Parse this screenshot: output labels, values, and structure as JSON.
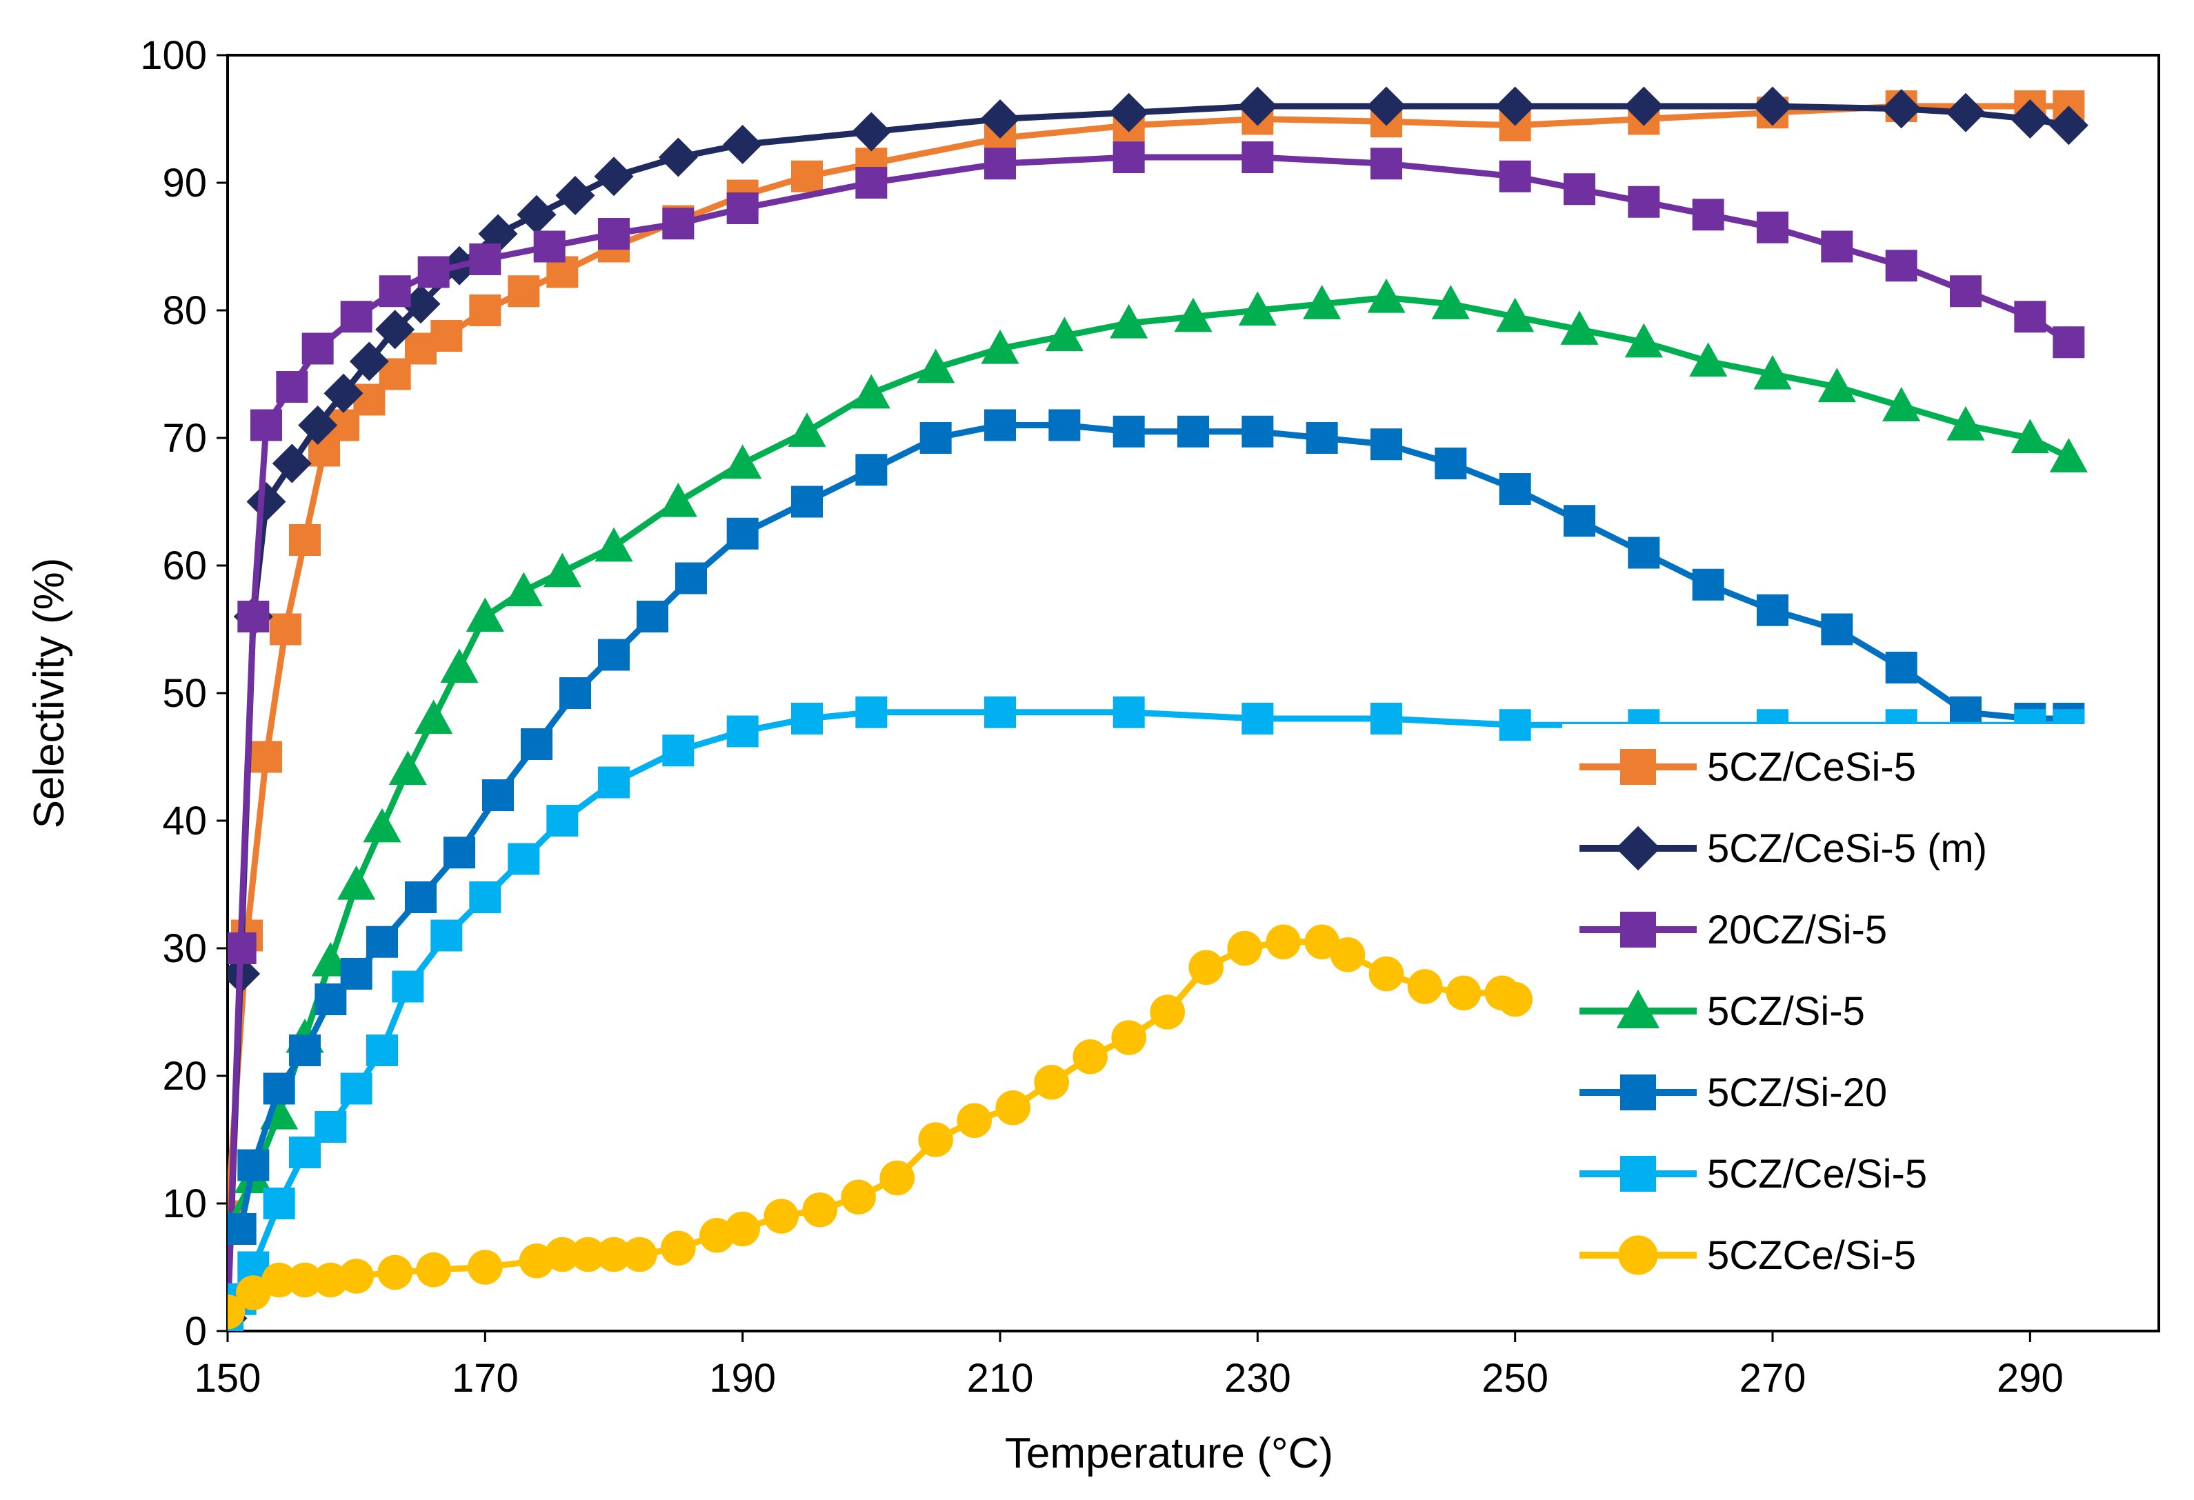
{
  "chart_data": {
    "type": "line",
    "title": "",
    "xlabel": "Temperature (°C)",
    "ylabel": "Selectivity (%)",
    "xlim": [
      150,
      300
    ],
    "ylim": [
      0,
      100
    ],
    "xticks": [
      150,
      170,
      190,
      210,
      230,
      250,
      270,
      290
    ],
    "yticks": [
      0,
      10,
      20,
      30,
      40,
      50,
      60,
      70,
      80,
      90,
      100
    ],
    "grid": false,
    "legend_position": "right",
    "series": [
      {
        "name": "5CZ/CeSi-5",
        "color": "#ED7D31",
        "marker": "square",
        "x": [
          150,
          151.5,
          153,
          154.5,
          156,
          157.5,
          159,
          161,
          163,
          165,
          167,
          170,
          173,
          176,
          180,
          185,
          190,
          195,
          200,
          210,
          220,
          230,
          240,
          250,
          260,
          270,
          280,
          290,
          293
        ],
        "y": [
          9,
          31,
          45,
          55,
          62,
          69,
          71,
          73,
          75,
          77,
          78,
          80,
          81.5,
          83,
          85,
          87,
          89,
          90.5,
          91.5,
          93.5,
          94.5,
          95,
          94.8,
          94.5,
          95,
          95.5,
          96,
          96,
          96
        ]
      },
      {
        "name": "5CZ/CeSi-5 (m)",
        "color": "#1F2A5F",
        "marker": "diamond",
        "x": [
          150,
          151,
          152,
          153,
          155,
          157,
          159,
          161,
          163,
          165,
          168,
          171,
          174,
          177,
          180,
          185,
          190,
          200,
          210,
          220,
          230,
          240,
          250,
          260,
          270,
          280,
          285,
          290,
          293
        ],
        "y": [
          1,
          28,
          56,
          65,
          68,
          71,
          73.5,
          76,
          78.5,
          80.5,
          83.5,
          86,
          87.5,
          89,
          90.5,
          92,
          93,
          94,
          95,
          95.5,
          96,
          96,
          96,
          96,
          96,
          95.8,
          95.5,
          95,
          94.5
        ]
      },
      {
        "name": "20CZ/Si-5",
        "color": "#7030A0",
        "marker": "square",
        "x": [
          150,
          151,
          152,
          153,
          155,
          157,
          160,
          163,
          166,
          170,
          175,
          180,
          185,
          190,
          200,
          210,
          220,
          230,
          240,
          250,
          255,
          260,
          265,
          270,
          275,
          280,
          285,
          290,
          293
        ],
        "y": [
          1,
          30,
          56,
          71,
          74,
          77,
          79.5,
          81.5,
          83,
          84,
          85,
          86,
          86.8,
          88,
          90,
          91.5,
          92,
          92,
          91.5,
          90.5,
          89.5,
          88.5,
          87.5,
          86.5,
          85,
          83.5,
          81.5,
          79.5,
          77.5
        ]
      },
      {
        "name": "5CZ/Si-5",
        "color": "#00B050",
        "marker": "triangle",
        "x": [
          150,
          152,
          154,
          156,
          158,
          160,
          162,
          164,
          166,
          168,
          170,
          173,
          176,
          180,
          185,
          190,
          195,
          200,
          205,
          210,
          215,
          220,
          225,
          230,
          235,
          240,
          245,
          250,
          255,
          260,
          265,
          270,
          275,
          280,
          285,
          290,
          293
        ],
        "y": [
          8,
          12,
          17,
          23,
          29,
          35,
          39.5,
          44,
          48,
          52,
          56,
          58,
          59.5,
          61.5,
          65,
          68,
          70.5,
          73.5,
          75.5,
          77,
          78,
          79,
          79.5,
          80,
          80.5,
          81,
          80.5,
          79.5,
          78.5,
          77.5,
          76,
          75,
          74,
          72.5,
          71,
          70,
          68.5
        ]
      },
      {
        "name": "5CZ/Si-20",
        "color": "#0070C0",
        "marker": "square",
        "x": [
          150,
          151,
          152,
          154,
          156,
          158,
          160,
          162,
          165,
          168,
          171,
          174,
          177,
          180,
          183,
          186,
          190,
          195,
          200,
          205,
          210,
          215,
          220,
          225,
          230,
          235,
          240,
          245,
          250,
          255,
          260,
          265,
          270,
          275,
          280,
          285,
          290,
          293
        ],
        "y": [
          8,
          8,
          13,
          19,
          22,
          26,
          28,
          30.5,
          34,
          37.5,
          42,
          46,
          50,
          53,
          56,
          59,
          62.5,
          65,
          67.5,
          70,
          71,
          71,
          70.5,
          70.5,
          70.5,
          70,
          69.5,
          68,
          66,
          63.5,
          61,
          58.5,
          56.5,
          55,
          52,
          48.5,
          48,
          48
        ]
      },
      {
        "name": "5CZ/Ce/Si-5",
        "color": "#00B0F0",
        "marker": "square",
        "x": [
          150,
          151,
          152,
          154,
          156,
          158,
          160,
          162,
          164,
          167,
          170,
          173,
          176,
          180,
          185,
          190,
          195,
          200,
          210,
          220,
          230,
          240,
          250,
          260,
          270,
          280,
          290,
          293
        ],
        "y": [
          0,
          2.5,
          5,
          10,
          14,
          16,
          19,
          22,
          27,
          31,
          34,
          37,
          40,
          43,
          45.5,
          47,
          48,
          48.5,
          48.5,
          48.5,
          48,
          48,
          47.5,
          47.5,
          47.5,
          47.5,
          47.5,
          47.5
        ]
      },
      {
        "name": "5CZCe/Si-5",
        "color": "#FFC000",
        "marker": "circle",
        "x": [
          150,
          152,
          154,
          156,
          158,
          160,
          163,
          166,
          170,
          174,
          176,
          178,
          180,
          182,
          185,
          188,
          190,
          193,
          196,
          199,
          202,
          205,
          208,
          211,
          214,
          217,
          220,
          223,
          226,
          229,
          232,
          235,
          237,
          240,
          243,
          246,
          249,
          250
        ],
        "y": [
          1.5,
          3,
          4,
          4,
          4,
          4.3,
          4.6,
          4.8,
          5,
          5.5,
          6,
          6,
          6,
          6,
          6.5,
          7.5,
          8,
          9,
          9.5,
          10.5,
          12,
          15,
          16.5,
          17.5,
          19.5,
          21.5,
          23,
          25,
          28.5,
          30,
          30.5,
          30.5,
          29.5,
          28,
          27,
          26.5,
          26.5,
          26
        ]
      }
    ]
  }
}
